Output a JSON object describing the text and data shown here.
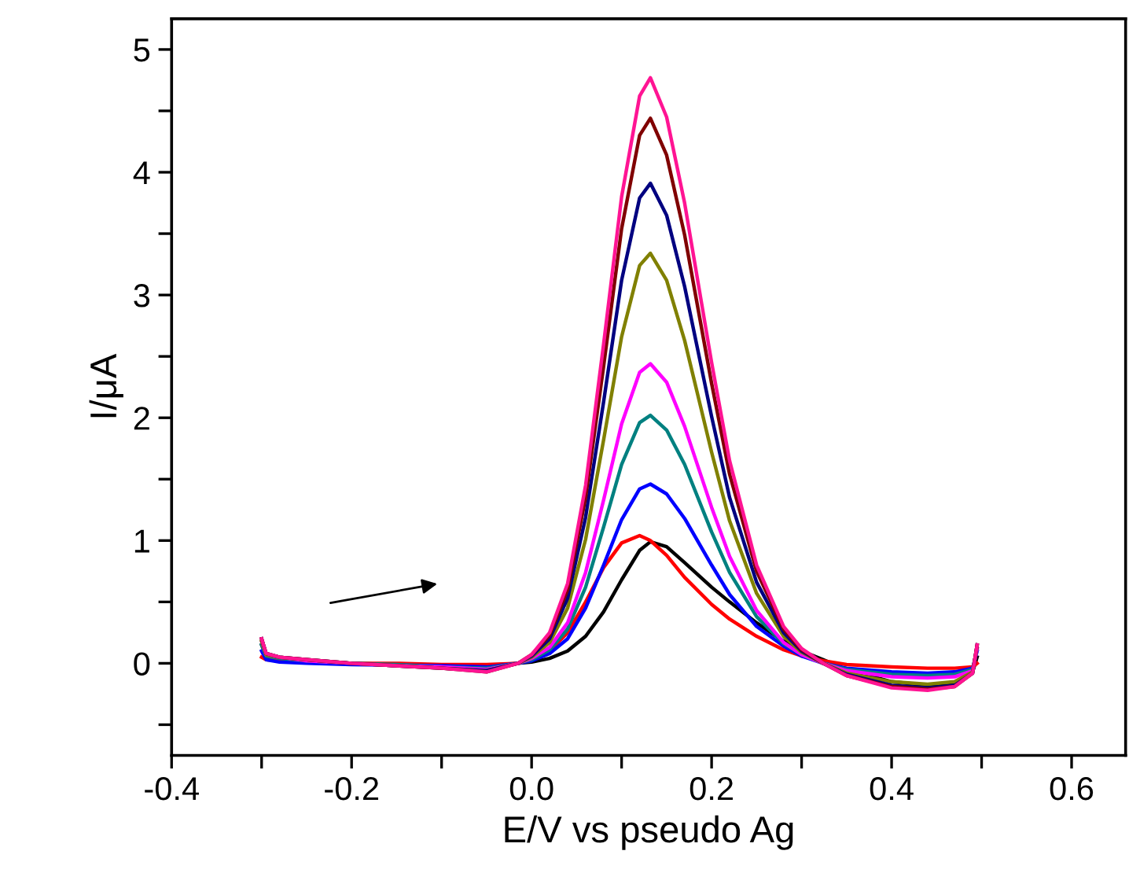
{
  "chart_data": {
    "type": "line",
    "xlabel": "E/V vs pseudo Ag",
    "ylabel": "I/μA",
    "xlim": [
      -0.4,
      0.66
    ],
    "ylim": [
      -0.75,
      5.25
    ],
    "xticks": [
      -0.4,
      {
        "value": -0.3,
        "label": null
      },
      -0.2,
      {
        "value": -0.1,
        "label": null
      },
      {
        "value": 0,
        "label": "0.0"
      },
      {
        "value": 0.1,
        "label": null
      },
      0.2,
      {
        "value": 0.3,
        "label": null
      },
      0.4,
      {
        "value": 0.5,
        "label": null
      },
      0.6
    ],
    "yticks": [
      {
        "value": -0.5,
        "label": null
      },
      0,
      {
        "value": 0.5,
        "label": null
      },
      1,
      {
        "value": 1.5,
        "label": null
      },
      2,
      {
        "value": 2.5,
        "label": null
      },
      3,
      {
        "value": 3.5,
        "label": null
      },
      4,
      {
        "value": 4.5,
        "label": null
      },
      5
    ],
    "grid": false,
    "legend": false,
    "marker": "none",
    "line_style": "solid",
    "x": [
      -0.3,
      -0.295,
      -0.28,
      -0.25,
      -0.2,
      -0.15,
      -0.1,
      -0.05,
      -0.015,
      0.0,
      0.02,
      0.04,
      0.06,
      0.08,
      0.1,
      0.12,
      0.132,
      0.15,
      0.17,
      0.2,
      0.22,
      0.25,
      0.28,
      0.3,
      0.324,
      0.35,
      0.4,
      0.44,
      0.47,
      0.49,
      0.495
    ],
    "series": [
      {
        "color": "#000000",
        "values": [
          0.15,
          0.06,
          0.04,
          0.02,
          0.0,
          -0.01,
          -0.02,
          -0.02,
          0.0,
          0.01,
          0.04,
          0.1,
          0.22,
          0.42,
          0.68,
          0.92,
          0.99,
          0.95,
          0.82,
          0.62,
          0.5,
          0.33,
          0.18,
          0.1,
          0.03,
          -0.05,
          -0.15,
          -0.18,
          -0.16,
          -0.07,
          0.05
        ]
      },
      {
        "color": "#ff0000",
        "values": [
          0.05,
          0.03,
          0.02,
          0.01,
          0.0,
          0.0,
          -0.01,
          -0.01,
          0.0,
          0.03,
          0.1,
          0.25,
          0.5,
          0.78,
          0.98,
          1.04,
          1.0,
          0.88,
          0.7,
          0.48,
          0.36,
          0.22,
          0.11,
          0.06,
          0.02,
          -0.01,
          -0.03,
          -0.04,
          -0.04,
          -0.03,
          0.0
        ]
      },
      {
        "color": "#0000ff",
        "values": [
          0.1,
          0.03,
          0.01,
          0.0,
          -0.01,
          -0.015,
          -0.02,
          -0.03,
          0.0,
          0.02,
          0.08,
          0.2,
          0.45,
          0.8,
          1.17,
          1.42,
          1.46,
          1.38,
          1.18,
          0.8,
          0.56,
          0.3,
          0.14,
          0.06,
          0.0,
          -0.04,
          -0.07,
          -0.08,
          -0.07,
          -0.04,
          0.1
        ]
      },
      {
        "color": "#008080",
        "values": [
          0.15,
          0.06,
          0.04,
          0.02,
          0.0,
          -0.01,
          -0.03,
          -0.04,
          0.0,
          0.03,
          0.11,
          0.28,
          0.62,
          1.11,
          1.62,
          1.96,
          2.02,
          1.9,
          1.62,
          1.07,
          0.74,
          0.38,
          0.16,
          0.07,
          0.0,
          -0.05,
          -0.09,
          -0.1,
          -0.09,
          -0.05,
          0.12
        ]
      },
      {
        "color": "#ff00ff",
        "values": [
          0.18,
          0.07,
          0.05,
          0.02,
          0.0,
          -0.02,
          -0.03,
          -0.05,
          0.0,
          0.04,
          0.13,
          0.33,
          0.74,
          1.33,
          1.95,
          2.37,
          2.44,
          2.29,
          1.93,
          1.27,
          0.87,
          0.43,
          0.17,
          0.07,
          0.0,
          -0.06,
          -0.11,
          -0.12,
          -0.11,
          -0.06,
          0.12
        ]
      },
      {
        "color": "#808000",
        "values": [
          0.18,
          0.07,
          0.05,
          0.03,
          0.0,
          -0.02,
          -0.04,
          -0.06,
          0.0,
          0.05,
          0.17,
          0.45,
          1.01,
          1.82,
          2.66,
          3.24,
          3.34,
          3.12,
          2.63,
          1.72,
          1.16,
          0.57,
          0.22,
          0.09,
          0.0,
          -0.08,
          -0.15,
          -0.17,
          -0.15,
          -0.07,
          0.14
        ]
      },
      {
        "color": "#000080",
        "values": [
          0.2,
          0.08,
          0.05,
          0.03,
          0.0,
          -0.02,
          -0.04,
          -0.06,
          0.0,
          0.06,
          0.2,
          0.53,
          1.19,
          2.13,
          3.12,
          3.79,
          3.91,
          3.65,
          3.07,
          2.01,
          1.35,
          0.66,
          0.25,
          0.1,
          0.0,
          -0.09,
          -0.18,
          -0.2,
          -0.18,
          -0.08,
          0.15
        ]
      },
      {
        "color": "#800000",
        "values": [
          0.2,
          0.08,
          0.05,
          0.03,
          0.0,
          -0.02,
          -0.04,
          -0.07,
          0.0,
          0.07,
          0.23,
          0.6,
          1.35,
          2.42,
          3.54,
          4.3,
          4.44,
          4.14,
          3.49,
          2.28,
          1.54,
          0.75,
          0.28,
          0.11,
          0.0,
          -0.1,
          -0.19,
          -0.21,
          -0.19,
          -0.08,
          0.15
        ]
      },
      {
        "color": "#ff1493",
        "values": [
          0.2,
          0.08,
          0.05,
          0.03,
          0.0,
          -0.02,
          -0.04,
          -0.07,
          0.0,
          0.07,
          0.25,
          0.65,
          1.45,
          2.6,
          3.8,
          4.62,
          4.77,
          4.45,
          3.75,
          2.45,
          1.65,
          0.8,
          0.3,
          0.12,
          0.0,
          -0.1,
          -0.2,
          -0.22,
          -0.19,
          -0.08,
          0.15
        ]
      }
    ]
  }
}
